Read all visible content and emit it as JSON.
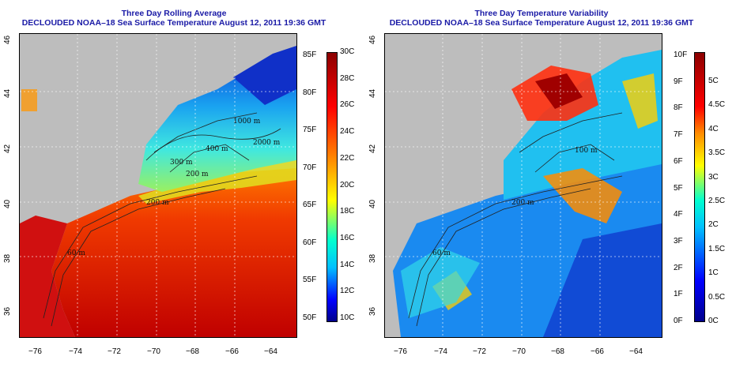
{
  "left_panel": {
    "title_line1": "Three Day Rolling Average",
    "title_line2": "DECLOUDED NOAA–18 Sea Surface Temperature August 12, 2011 19:36 GMT",
    "x_ticks": [
      "−76",
      "−74",
      "−72",
      "−70",
      "−68",
      "−66",
      "−64"
    ],
    "y_ticks": [
      "36",
      "38",
      "40",
      "42",
      "44",
      "46"
    ],
    "colorbar_f": [
      "85F",
      "80F",
      "75F",
      "70F",
      "65F",
      "60F",
      "55F",
      "50F"
    ],
    "colorbar_c": [
      "30C",
      "28C",
      "26C",
      "24C",
      "22C",
      "20C",
      "18C",
      "16C",
      "14C",
      "12C",
      "10C"
    ],
    "contour_labels": [
      "200 m",
      "1000 m",
      "2000 m",
      "400 m",
      "60 m",
      "200 m",
      "300 m"
    ],
    "colors": [
      "#00008b",
      "#0000ff",
      "#00bfff",
      "#00ffd0",
      "#ffff00",
      "#ff8c00",
      "#ff0000",
      "#8b0000"
    ]
  },
  "right_panel": {
    "title_line1": "Three Day Temperature Variability",
    "title_line2": "DECLOUDED NOAA–18 Sea Surface Temperature August 12, 2011 19:36 GMT",
    "x_ticks": [
      "−76",
      "−74",
      "−72",
      "−70",
      "−68",
      "−66",
      "−64"
    ],
    "y_ticks": [
      "36",
      "38",
      "40",
      "42",
      "44",
      "46"
    ],
    "colorbar_f": [
      "10F",
      "9F",
      "8F",
      "7F",
      "6F",
      "5F",
      "4F",
      "3F",
      "2F",
      "1F",
      "0F"
    ],
    "colorbar_c": [
      "5C",
      "4.5C",
      "4C",
      "3.5C",
      "3C",
      "2.5C",
      "2C",
      "1.5C",
      "1C",
      "0.5C",
      "0C"
    ],
    "contour_labels": [
      "200 m",
      "100 m",
      "60 m"
    ],
    "colors": [
      "#00008b",
      "#0000ff",
      "#00bfff",
      "#00ffd0",
      "#ffff00",
      "#ff8c00",
      "#ff0000",
      "#8b0000"
    ]
  }
}
